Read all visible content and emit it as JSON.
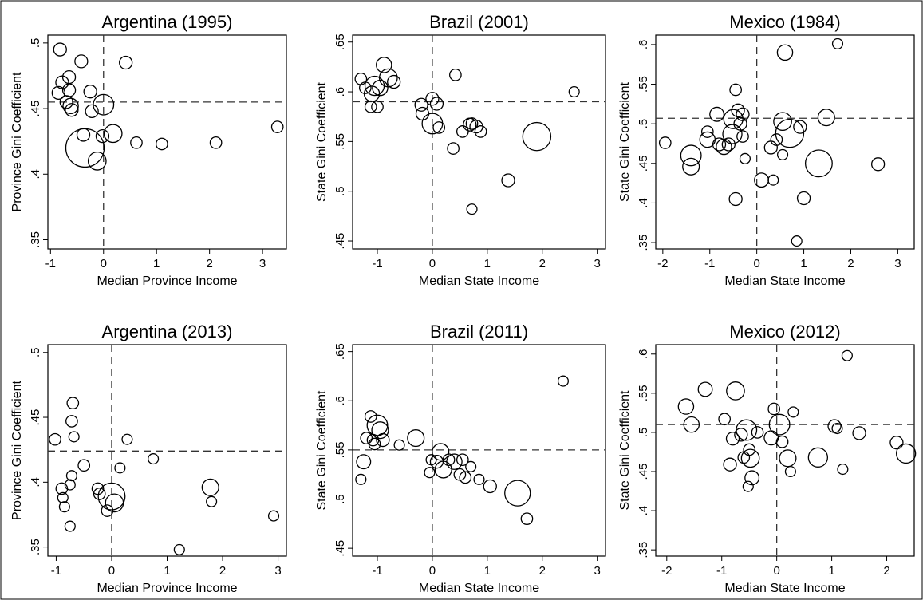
{
  "chart_data": [
    {
      "type": "scatter",
      "title": "Argentina (1995)",
      "xlabel": "Median Province Income",
      "ylabel": "Province Gini Coefficient",
      "xlim": [
        -1.05,
        3.45
      ],
      "ylim": [
        0.343,
        0.506
      ],
      "xticks": [
        -1,
        0,
        1,
        2,
        3
      ],
      "xtick_labels": [
        "-1",
        "0",
        "1",
        "2",
        "3"
      ],
      "yticks": [
        0.35,
        0.4,
        0.45,
        0.5
      ],
      "ytick_labels": [
        ".35",
        ".4",
        ".45",
        ".5"
      ],
      "ref_x": 0,
      "ref_y": 0.455,
      "legend": "none",
      "grid": false,
      "points": [
        {
          "x": -0.82,
          "y": 0.495,
          "s": 1
        },
        {
          "x": -0.85,
          "y": 0.462,
          "s": 1
        },
        {
          "x": -0.78,
          "y": 0.47,
          "s": 1
        },
        {
          "x": -0.65,
          "y": 0.474,
          "s": 1
        },
        {
          "x": -0.65,
          "y": 0.464,
          "s": 1
        },
        {
          "x": -0.7,
          "y": 0.455,
          "s": 1
        },
        {
          "x": -0.62,
          "y": 0.452,
          "s": 1.2
        },
        {
          "x": -0.6,
          "y": 0.449,
          "s": 1
        },
        {
          "x": -0.42,
          "y": 0.486,
          "s": 1
        },
        {
          "x": -0.25,
          "y": 0.463,
          "s": 1
        },
        {
          "x": -0.22,
          "y": 0.448,
          "s": 1
        },
        {
          "x": 0.0,
          "y": 0.453,
          "s": 1.6
        },
        {
          "x": 0.42,
          "y": 0.485,
          "s": 1
        },
        {
          "x": -0.38,
          "y": 0.43,
          "s": 1
        },
        {
          "x": -0.35,
          "y": 0.42,
          "s": 3
        },
        {
          "x": -0.12,
          "y": 0.41,
          "s": 1.4
        },
        {
          "x": -0.02,
          "y": 0.429,
          "s": 1
        },
        {
          "x": 0.18,
          "y": 0.431,
          "s": 1.4
        },
        {
          "x": 0.62,
          "y": 0.424,
          "s": 0.9
        },
        {
          "x": 1.1,
          "y": 0.423,
          "s": 0.9
        },
        {
          "x": 2.12,
          "y": 0.424,
          "s": 0.9
        },
        {
          "x": 3.28,
          "y": 0.436,
          "s": 0.9
        }
      ]
    },
    {
      "type": "scatter",
      "title": "Brazil (2001)",
      "xlabel": "Median State Income",
      "ylabel": "State Gini Coefficient",
      "xlim": [
        -1.45,
        3.15
      ],
      "ylim": [
        0.442,
        0.657
      ],
      "xticks": [
        -1,
        0,
        1,
        2,
        3
      ],
      "xtick_labels": [
        "-1",
        "0",
        "1",
        "2",
        "3"
      ],
      "yticks": [
        0.45,
        0.5,
        0.55,
        0.6,
        0.65
      ],
      "ytick_labels": [
        ".45",
        ".5",
        ".55",
        ".6",
        ".65"
      ],
      "ref_x": 0,
      "ref_y": 0.59,
      "legend": "none",
      "grid": false,
      "points": [
        {
          "x": -1.3,
          "y": 0.613,
          "s": 0.9
        },
        {
          "x": -1.22,
          "y": 0.604,
          "s": 0.9
        },
        {
          "x": -1.1,
          "y": 0.598,
          "s": 1.2
        },
        {
          "x": -1.05,
          "y": 0.606,
          "s": 1.5
        },
        {
          "x": -0.95,
          "y": 0.604,
          "s": 1.2
        },
        {
          "x": -0.88,
          "y": 0.627,
          "s": 1.2
        },
        {
          "x": -0.8,
          "y": 0.614,
          "s": 1.4
        },
        {
          "x": -0.7,
          "y": 0.61,
          "s": 1
        },
        {
          "x": -1.12,
          "y": 0.585,
          "s": 0.9
        },
        {
          "x": -1.0,
          "y": 0.585,
          "s": 0.9
        },
        {
          "x": -0.2,
          "y": 0.587,
          "s": 1
        },
        {
          "x": -0.18,
          "y": 0.578,
          "s": 1
        },
        {
          "x": 0.0,
          "y": 0.593,
          "s": 1
        },
        {
          "x": 0.08,
          "y": 0.588,
          "s": 1
        },
        {
          "x": 0.0,
          "y": 0.568,
          "s": 1.6
        },
        {
          "x": 0.12,
          "y": 0.564,
          "s": 0.9
        },
        {
          "x": 0.42,
          "y": 0.617,
          "s": 0.9
        },
        {
          "x": 0.38,
          "y": 0.543,
          "s": 0.9
        },
        {
          "x": 0.55,
          "y": 0.56,
          "s": 0.9
        },
        {
          "x": 0.68,
          "y": 0.567,
          "s": 1
        },
        {
          "x": 0.72,
          "y": 0.568,
          "s": 0.9
        },
        {
          "x": 0.8,
          "y": 0.565,
          "s": 1
        },
        {
          "x": 0.88,
          "y": 0.56,
          "s": 0.9
        },
        {
          "x": 1.38,
          "y": 0.511,
          "s": 1
        },
        {
          "x": 0.72,
          "y": 0.482,
          "s": 0.8
        },
        {
          "x": 1.9,
          "y": 0.555,
          "s": 2.2
        },
        {
          "x": 2.58,
          "y": 0.6,
          "s": 0.8
        }
      ]
    },
    {
      "type": "scatter",
      "title": "Mexico (1984)",
      "xlabel": "Median State Income",
      "ylabel": "State Gini Coefficient",
      "xlim": [
        -2.15,
        3.35
      ],
      "ylim": [
        0.342,
        0.612
      ],
      "xticks": [
        -2,
        -1,
        0,
        1,
        2,
        3
      ],
      "xtick_labels": [
        "-2",
        "-1",
        "0",
        "1",
        "2",
        "3"
      ],
      "yticks": [
        0.35,
        0.4,
        0.45,
        0.5,
        0.55,
        0.6
      ],
      "ytick_labels": [
        ".35",
        ".4",
        ".45",
        ".5",
        ".55",
        ".6"
      ],
      "ref_x": 0,
      "ref_y": 0.507,
      "legend": "none",
      "grid": false,
      "points": [
        {
          "x": -1.95,
          "y": 0.476,
          "s": 0.9
        },
        {
          "x": -1.4,
          "y": 0.46,
          "s": 1.6
        },
        {
          "x": -1.4,
          "y": 0.446,
          "s": 1.3
        },
        {
          "x": -1.05,
          "y": 0.49,
          "s": 0.9
        },
        {
          "x": -1.05,
          "y": 0.48,
          "s": 1.2
        },
        {
          "x": -0.85,
          "y": 0.512,
          "s": 1.1
        },
        {
          "x": -0.8,
          "y": 0.474,
          "s": 1
        },
        {
          "x": -0.7,
          "y": 0.471,
          "s": 1.2
        },
        {
          "x": -0.6,
          "y": 0.474,
          "s": 1
        },
        {
          "x": -0.52,
          "y": 0.487,
          "s": 1.5
        },
        {
          "x": -0.5,
          "y": 0.506,
          "s": 1.5
        },
        {
          "x": -0.45,
          "y": 0.543,
          "s": 0.9
        },
        {
          "x": -0.4,
          "y": 0.517,
          "s": 1
        },
        {
          "x": -0.3,
          "y": 0.512,
          "s": 1
        },
        {
          "x": -0.35,
          "y": 0.5,
          "s": 1
        },
        {
          "x": -0.3,
          "y": 0.484,
          "s": 0.9
        },
        {
          "x": -0.25,
          "y": 0.456,
          "s": 0.8
        },
        {
          "x": -0.45,
          "y": 0.405,
          "s": 1
        },
        {
          "x": 0.1,
          "y": 0.429,
          "s": 1.1
        },
        {
          "x": 0.3,
          "y": 0.47,
          "s": 1
        },
        {
          "x": 0.42,
          "y": 0.48,
          "s": 0.9
        },
        {
          "x": 0.35,
          "y": 0.429,
          "s": 0.8
        },
        {
          "x": 0.55,
          "y": 0.461,
          "s": 0.8
        },
        {
          "x": 0.55,
          "y": 0.503,
          "s": 1.4
        },
        {
          "x": 0.6,
          "y": 0.59,
          "s": 1.2
        },
        {
          "x": 0.7,
          "y": 0.488,
          "s": 2.2
        },
        {
          "x": 0.92,
          "y": 0.496,
          "s": 1
        },
        {
          "x": 1.0,
          "y": 0.406,
          "s": 1
        },
        {
          "x": 0.85,
          "y": 0.352,
          "s": 0.8
        },
        {
          "x": 1.32,
          "y": 0.45,
          "s": 2.1
        },
        {
          "x": 1.48,
          "y": 0.508,
          "s": 1.3
        },
        {
          "x": 1.72,
          "y": 0.601,
          "s": 0.8
        },
        {
          "x": 2.58,
          "y": 0.449,
          "s": 1
        }
      ]
    },
    {
      "type": "scatter",
      "title": "Argentina (2013)",
      "xlabel": "Median Province Income",
      "ylabel": "Province Gini Coefficient",
      "xlim": [
        -1.15,
        3.15
      ],
      "ylim": [
        0.343,
        0.506
      ],
      "xticks": [
        -1,
        0,
        1,
        2,
        3
      ],
      "xtick_labels": [
        "-1",
        "0",
        "1",
        "2",
        "3"
      ],
      "yticks": [
        0.35,
        0.4,
        0.45,
        0.5
      ],
      "ytick_labels": [
        ".35",
        ".4",
        ".45",
        ".5"
      ],
      "ref_x": 0,
      "ref_y": 0.424,
      "legend": "none",
      "grid": false,
      "points": [
        {
          "x": -1.02,
          "y": 0.433,
          "s": 0.9
        },
        {
          "x": -0.7,
          "y": 0.461,
          "s": 0.9
        },
        {
          "x": -0.72,
          "y": 0.447,
          "s": 0.9
        },
        {
          "x": -0.68,
          "y": 0.435,
          "s": 0.8
        },
        {
          "x": -0.9,
          "y": 0.395,
          "s": 0.9
        },
        {
          "x": -0.88,
          "y": 0.388,
          "s": 0.8
        },
        {
          "x": -0.85,
          "y": 0.381,
          "s": 0.8
        },
        {
          "x": -0.75,
          "y": 0.398,
          "s": 0.8
        },
        {
          "x": -0.72,
          "y": 0.405,
          "s": 0.8
        },
        {
          "x": -0.75,
          "y": 0.366,
          "s": 0.8
        },
        {
          "x": -0.5,
          "y": 0.413,
          "s": 0.9
        },
        {
          "x": -0.25,
          "y": 0.395,
          "s": 0.9
        },
        {
          "x": -0.22,
          "y": 0.391,
          "s": 0.9
        },
        {
          "x": 0.0,
          "y": 0.389,
          "s": 2.1
        },
        {
          "x": 0.05,
          "y": 0.384,
          "s": 1.4
        },
        {
          "x": -0.08,
          "y": 0.378,
          "s": 0.9
        },
        {
          "x": 0.15,
          "y": 0.411,
          "s": 0.8
        },
        {
          "x": 0.28,
          "y": 0.433,
          "s": 0.8
        },
        {
          "x": 0.75,
          "y": 0.418,
          "s": 0.8
        },
        {
          "x": 1.78,
          "y": 0.396,
          "s": 1.3
        },
        {
          "x": 1.8,
          "y": 0.385,
          "s": 0.8
        },
        {
          "x": 1.22,
          "y": 0.348,
          "s": 0.8
        },
        {
          "x": 2.92,
          "y": 0.374,
          "s": 0.8
        }
      ]
    },
    {
      "type": "scatter",
      "title": "Brazil (2011)",
      "xlabel": "Median State Income",
      "ylabel": "State Gini Coefficient",
      "xlim": [
        -1.45,
        3.15
      ],
      "ylim": [
        0.442,
        0.657
      ],
      "xticks": [
        -1,
        0,
        1,
        2,
        3
      ],
      "xtick_labels": [
        "-1",
        "0",
        "1",
        "2",
        "3"
      ],
      "yticks": [
        0.45,
        0.5,
        0.55,
        0.6,
        0.65
      ],
      "ytick_labels": [
        ".45",
        ".5",
        ".55",
        ".6",
        ".65"
      ],
      "ref_x": 0,
      "ref_y": 0.55,
      "legend": "none",
      "grid": false,
      "points": [
        {
          "x": -1.3,
          "y": 0.52,
          "s": 0.8
        },
        {
          "x": -1.25,
          "y": 0.538,
          "s": 1.1
        },
        {
          "x": -1.2,
          "y": 0.562,
          "s": 0.9
        },
        {
          "x": -1.12,
          "y": 0.584,
          "s": 0.9
        },
        {
          "x": -1.08,
          "y": 0.56,
          "s": 0.9
        },
        {
          "x": -1.05,
          "y": 0.556,
          "s": 0.9
        },
        {
          "x": -1.0,
          "y": 0.575,
          "s": 1.6
        },
        {
          "x": -0.95,
          "y": 0.57,
          "s": 1.3
        },
        {
          "x": -0.9,
          "y": 0.56,
          "s": 1
        },
        {
          "x": -0.6,
          "y": 0.555,
          "s": 0.8
        },
        {
          "x": -0.3,
          "y": 0.562,
          "s": 1.3
        },
        {
          "x": -0.05,
          "y": 0.527,
          "s": 0.8
        },
        {
          "x": -0.02,
          "y": 0.54,
          "s": 0.8
        },
        {
          "x": 0.08,
          "y": 0.538,
          "s": 1
        },
        {
          "x": 0.15,
          "y": 0.548,
          "s": 1.3
        },
        {
          "x": 0.2,
          "y": 0.53,
          "s": 1.3
        },
        {
          "x": 0.3,
          "y": 0.54,
          "s": 0.9
        },
        {
          "x": 0.4,
          "y": 0.538,
          "s": 1.2
        },
        {
          "x": 0.55,
          "y": 0.54,
          "s": 0.9
        },
        {
          "x": 0.5,
          "y": 0.525,
          "s": 0.9
        },
        {
          "x": 0.6,
          "y": 0.522,
          "s": 0.9
        },
        {
          "x": 0.7,
          "y": 0.533,
          "s": 0.8
        },
        {
          "x": 0.85,
          "y": 0.52,
          "s": 0.8
        },
        {
          "x": 1.05,
          "y": 0.513,
          "s": 1
        },
        {
          "x": 1.55,
          "y": 0.506,
          "s": 2
        },
        {
          "x": 1.72,
          "y": 0.48,
          "s": 0.9
        },
        {
          "x": 2.38,
          "y": 0.62,
          "s": 0.8
        }
      ]
    },
    {
      "type": "scatter",
      "title": "Mexico (2012)",
      "xlabel": "Median State Income",
      "ylabel": "State Gini Coefficient",
      "xlim": [
        -2.2,
        2.5
      ],
      "ylim": [
        0.342,
        0.612
      ],
      "xticks": [
        -2,
        -1,
        0,
        1,
        2
      ],
      "xtick_labels": [
        "-2",
        "-1",
        "0",
        "1",
        "2"
      ],
      "yticks": [
        0.35,
        0.4,
        0.45,
        0.5,
        0.55,
        0.6
      ],
      "ytick_labels": [
        ".35",
        ".4",
        ".45",
        ".5",
        ".55",
        ".6"
      ],
      "ref_x": 0,
      "ref_y": 0.51,
      "legend": "none",
      "grid": false,
      "points": [
        {
          "x": -1.65,
          "y": 0.533,
          "s": 1.2
        },
        {
          "x": -1.55,
          "y": 0.51,
          "s": 1.2
        },
        {
          "x": -1.3,
          "y": 0.555,
          "s": 1.1
        },
        {
          "x": -0.75,
          "y": 0.553,
          "s": 1.4
        },
        {
          "x": -0.95,
          "y": 0.517,
          "s": 0.9
        },
        {
          "x": -0.8,
          "y": 0.492,
          "s": 1
        },
        {
          "x": -0.65,
          "y": 0.497,
          "s": 1
        },
        {
          "x": -0.55,
          "y": 0.503,
          "s": 1.6
        },
        {
          "x": -0.6,
          "y": 0.468,
          "s": 0.9
        },
        {
          "x": -0.5,
          "y": 0.478,
          "s": 0.9
        },
        {
          "x": -0.48,
          "y": 0.467,
          "s": 1.4
        },
        {
          "x": -0.35,
          "y": 0.5,
          "s": 0.9
        },
        {
          "x": -0.45,
          "y": 0.442,
          "s": 1.1
        },
        {
          "x": -0.52,
          "y": 0.431,
          "s": 0.8
        },
        {
          "x": -0.85,
          "y": 0.459,
          "s": 1
        },
        {
          "x": -0.1,
          "y": 0.493,
          "s": 1.1
        },
        {
          "x": -0.05,
          "y": 0.53,
          "s": 0.9
        },
        {
          "x": 0.05,
          "y": 0.51,
          "s": 1.6
        },
        {
          "x": 0.1,
          "y": 0.488,
          "s": 0.9
        },
        {
          "x": 0.2,
          "y": 0.467,
          "s": 1.3
        },
        {
          "x": 0.3,
          "y": 0.526,
          "s": 0.8
        },
        {
          "x": 0.25,
          "y": 0.45,
          "s": 0.8
        },
        {
          "x": 0.75,
          "y": 0.468,
          "s": 1.5
        },
        {
          "x": 1.05,
          "y": 0.508,
          "s": 1
        },
        {
          "x": 1.1,
          "y": 0.505,
          "s": 0.8
        },
        {
          "x": 1.2,
          "y": 0.453,
          "s": 0.8
        },
        {
          "x": 1.28,
          "y": 0.598,
          "s": 0.8
        },
        {
          "x": 1.5,
          "y": 0.499,
          "s": 1
        },
        {
          "x": 2.18,
          "y": 0.487,
          "s": 1
        },
        {
          "x": 2.35,
          "y": 0.473,
          "s": 1.5
        }
      ]
    }
  ]
}
